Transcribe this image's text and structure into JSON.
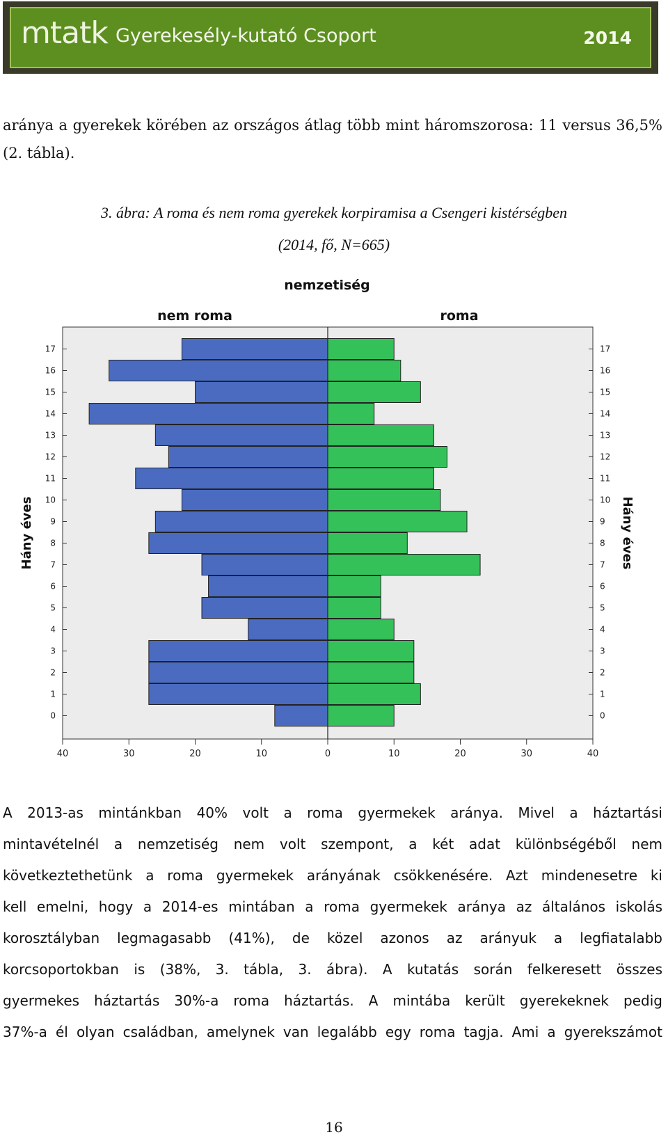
{
  "header": {
    "logo": "mtatk",
    "group": "Gyerekesély-kutató Csoport",
    "year": "2014"
  },
  "intro_text": "aránya a gyerekek körében az országos átlag több mint háromszorosa: 11 versus 36,5% (2. tábla).",
  "figure": {
    "caption_line1": "3. ábra: A roma és nem roma gyerekek korpiramisa a Csengeri kistérségben",
    "caption_line2": "(2014, fő, N=665)"
  },
  "chart_data": {
    "type": "bar",
    "orientation": "horizontal-pyramid",
    "title": "nemzetiség",
    "ylabel": "Hány éves",
    "categories": [
      "0",
      "1",
      "2",
      "3",
      "4",
      "5",
      "6",
      "7",
      "8",
      "9",
      "10",
      "11",
      "12",
      "13",
      "14",
      "15",
      "16",
      "17"
    ],
    "series": [
      {
        "name": "nem roma",
        "color": "#4a6bbf",
        "values": [
          8,
          27,
          27,
          27,
          12,
          19,
          18,
          19,
          27,
          26,
          22,
          29,
          24,
          26,
          36,
          20,
          33,
          22
        ]
      },
      {
        "name": "roma",
        "color": "#35c15a",
        "values": [
          10,
          14,
          13,
          13,
          10,
          8,
          8,
          23,
          12,
          21,
          17,
          16,
          18,
          16,
          7,
          14,
          11,
          10
        ]
      }
    ],
    "xticks": [
      "40",
      "30",
      "20",
      "10",
      "0",
      "10",
      "20",
      "30",
      "40"
    ],
    "xlim": [
      -40,
      40
    ],
    "grid": false
  },
  "paragraph_lines": [
    "A 2013-as mintánkban 40% volt a roma gyermekek aránya. Mivel a háztartási",
    "mintavételnél a nemzetiség nem volt szempont, a két adat különbségéből nem",
    "következtethetünk a roma gyermekek arányának csökkenésére. Azt mindenesetre ki",
    "kell emelni, hogy a 2014-es mintában a roma gyermekek aránya az általános iskolás",
    "korosztályban legmagasabb (41%), de közel azonos az arányuk a legfiatalabb",
    "korcsoportokban is (38%, 3. tábla, 3. ábra). A kutatás során felkeresett összes",
    "gyermekes háztartás 30%-a roma háztartás. A mintába került gyerekeknek pedig",
    "37%-a él olyan családban, amelynek van legalább egy roma tagja. Ami a gyerekszámot"
  ],
  "page_number": "16"
}
